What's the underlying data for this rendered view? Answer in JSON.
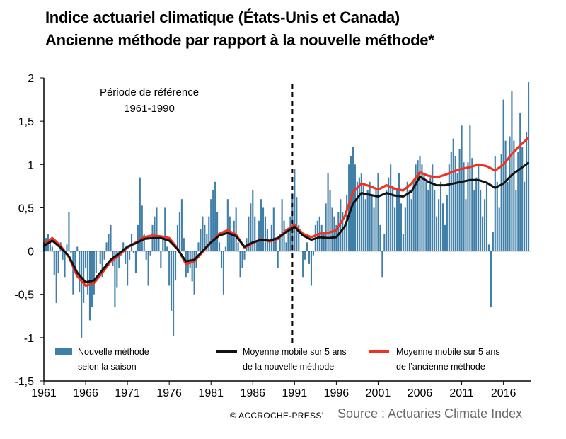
{
  "title_line1": "Indice actuariel climatique (États-Unis et Canada)",
  "title_line2": "Ancienne méthode par rapport à la nouvelle méthode*",
  "copyright": "© ACCROCHE-PRESS’",
  "source": "Source : Actuaries Climate Index",
  "chart_data": {
    "type": "bar+line",
    "ylim": [
      -1.5,
      2
    ],
    "yticks": [
      -1.5,
      -1,
      -0.5,
      0,
      0.5,
      1,
      1.5,
      2
    ],
    "ytick_labels": [
      "-1,5",
      "-1",
      "-0,5",
      "0",
      "0,5",
      "1",
      "1,5",
      "2"
    ],
    "xticks": [
      "1961",
      "1966",
      "1971",
      "1976",
      "1981",
      "1986",
      "1991",
      "1996",
      "2001",
      "2006",
      "2011",
      "2016"
    ],
    "x_range": [
      1961.0,
      2019.25
    ],
    "reference_period_label_line1": "Période de référence",
    "reference_period_label_line2": "1961-1990",
    "reference_divider_x": 1990.75,
    "colors": {
      "bars": "#3f7fa8",
      "new_ma": "#111111",
      "old_ma": "#ee3322"
    },
    "legend": [
      {
        "key": "bars",
        "line1": "Nouvelle méthode",
        "line2": "selon la saison"
      },
      {
        "key": "new_ma",
        "line1": "Moyenne mobile sur 5 ans",
        "line2": "de la nouvelle méthode"
      },
      {
        "key": "old_ma",
        "line1": "Moyenne mobile sur 5 ans",
        "line2": "de l’ancienne méthode"
      }
    ],
    "bar_anchors": [
      [
        1961.0,
        0.1
      ],
      [
        1961.5,
        0.2
      ],
      [
        1962.0,
        0.05
      ],
      [
        1962.5,
        -0.6
      ],
      [
        1963.0,
        0.1
      ],
      [
        1963.5,
        -0.3
      ],
      [
        1964.0,
        0.45
      ],
      [
        1964.5,
        -0.5
      ],
      [
        1965.0,
        0.05
      ],
      [
        1965.5,
        -1.0
      ],
      [
        1966.0,
        -0.2
      ],
      [
        1966.5,
        -0.8
      ],
      [
        1967.0,
        -0.5
      ],
      [
        1967.5,
        0.0
      ],
      [
        1968.0,
        -0.3
      ],
      [
        1968.5,
        0.1
      ],
      [
        1969.0,
        0.3
      ],
      [
        1969.5,
        -0.65
      ],
      [
        1970.0,
        -0.2
      ],
      [
        1970.5,
        0.1
      ],
      [
        1971.0,
        -0.4
      ],
      [
        1971.5,
        0.2
      ],
      [
        1972.0,
        -0.25
      ],
      [
        1972.5,
        0.85
      ],
      [
        1973.0,
        0.2
      ],
      [
        1973.5,
        -0.4
      ],
      [
        1974.0,
        0.3
      ],
      [
        1974.5,
        0.5
      ],
      [
        1975.0,
        -0.2
      ],
      [
        1975.5,
        0.5
      ],
      [
        1976.0,
        -0.4
      ],
      [
        1976.5,
        -0.98
      ],
      [
        1977.0,
        0.3
      ],
      [
        1977.5,
        0.6
      ],
      [
        1978.0,
        -0.3
      ],
      [
        1978.5,
        -0.2
      ],
      [
        1979.0,
        -0.5
      ],
      [
        1979.5,
        0.1
      ],
      [
        1980.0,
        0.4
      ],
      [
        1980.5,
        0.2
      ],
      [
        1981.0,
        0.6
      ],
      [
        1981.5,
        0.8
      ],
      [
        1982.0,
        0.1
      ],
      [
        1982.5,
        -0.5
      ],
      [
        1983.0,
        0.6
      ],
      [
        1983.5,
        0.2
      ],
      [
        1984.0,
        0.5
      ],
      [
        1984.5,
        -0.3
      ],
      [
        1985.0,
        -0.1
      ],
      [
        1985.5,
        0.4
      ],
      [
        1986.0,
        0.7
      ],
      [
        1986.5,
        0.1
      ],
      [
        1987.0,
        0.6
      ],
      [
        1987.5,
        0.4
      ],
      [
        1988.0,
        0.1
      ],
      [
        1988.5,
        0.5
      ],
      [
        1989.0,
        -0.2
      ],
      [
        1989.5,
        0.6
      ],
      [
        1990.0,
        0.1
      ],
      [
        1990.5,
        0.4
      ],
      [
        1991.0,
        0.95
      ],
      [
        1991.5,
        0.3
      ],
      [
        1992.0,
        -0.3
      ],
      [
        1992.5,
        0.1
      ],
      [
        1993.0,
        -0.4
      ],
      [
        1993.5,
        0.3
      ],
      [
        1994.0,
        0.4
      ],
      [
        1994.5,
        0.2
      ],
      [
        1995.0,
        0.9
      ],
      [
        1995.5,
        0.5
      ],
      [
        1996.0,
        0.3
      ],
      [
        1996.5,
        0.6
      ],
      [
        1997.0,
        0.3
      ],
      [
        1997.5,
        1.0
      ],
      [
        1998.0,
        1.2
      ],
      [
        1998.5,
        0.8
      ],
      [
        1999.0,
        0.9
      ],
      [
        1999.5,
        0.6
      ],
      [
        2000.0,
        0.8
      ],
      [
        2000.5,
        0.5
      ],
      [
        2001.0,
        0.9
      ],
      [
        2001.5,
        -0.3
      ],
      [
        2002.0,
        0.7
      ],
      [
        2002.5,
        1.0
      ],
      [
        2003.0,
        0.5
      ],
      [
        2003.5,
        0.9
      ],
      [
        2004.0,
        0.2
      ],
      [
        2004.5,
        0.8
      ],
      [
        2005.0,
        0.6
      ],
      [
        2005.5,
        1.0
      ],
      [
        2006.0,
        1.1
      ],
      [
        2006.5,
        0.9
      ],
      [
        2007.0,
        0.7
      ],
      [
        2007.5,
        1.0
      ],
      [
        2008.0,
        0.4
      ],
      [
        2008.5,
        0.8
      ],
      [
        2009.0,
        0.3
      ],
      [
        2009.5,
        1.0
      ],
      [
        2010.0,
        1.3
      ],
      [
        2010.5,
        0.9
      ],
      [
        2011.0,
        1.45
      ],
      [
        2011.5,
        0.6
      ],
      [
        2012.0,
        1.45
      ],
      [
        2012.5,
        0.7
      ],
      [
        2013.0,
        1.0
      ],
      [
        2013.5,
        0.4
      ],
      [
        2014.0,
        0.8
      ],
      [
        2014.5,
        -0.65
      ],
      [
        2015.0,
        1.1
      ],
      [
        2015.5,
        0.5
      ],
      [
        2016.0,
        1.75
      ],
      [
        2016.5,
        0.8
      ],
      [
        2017.0,
        1.85
      ],
      [
        2017.5,
        0.7
      ],
      [
        2018.0,
        1.6
      ],
      [
        2018.5,
        0.8
      ],
      [
        2019.0,
        1.95
      ]
    ],
    "series": [
      {
        "key": "new_ma",
        "values": [
          [
            1961.0,
            0.06
          ],
          [
            1962.0,
            0.12
          ],
          [
            1963.0,
            0.04
          ],
          [
            1964.0,
            -0.06
          ],
          [
            1965.0,
            -0.25
          ],
          [
            1966.0,
            -0.36
          ],
          [
            1967.0,
            -0.34
          ],
          [
            1968.0,
            -0.22
          ],
          [
            1969.0,
            -0.1
          ],
          [
            1970.0,
            -0.03
          ],
          [
            1971.0,
            0.05
          ],
          [
            1972.0,
            0.09
          ],
          [
            1973.0,
            0.14
          ],
          [
            1974.0,
            0.15
          ],
          [
            1975.0,
            0.15
          ],
          [
            1976.0,
            0.12
          ],
          [
            1977.0,
            0.02
          ],
          [
            1978.0,
            -0.12
          ],
          [
            1979.0,
            -0.1
          ],
          [
            1980.0,
            0.0
          ],
          [
            1981.0,
            0.1
          ],
          [
            1982.0,
            0.18
          ],
          [
            1983.0,
            0.21
          ],
          [
            1984.0,
            0.17
          ],
          [
            1985.0,
            0.05
          ],
          [
            1986.0,
            0.1
          ],
          [
            1987.0,
            0.13
          ],
          [
            1988.0,
            0.12
          ],
          [
            1989.0,
            0.15
          ],
          [
            1990.0,
            0.22
          ],
          [
            1991.0,
            0.28
          ],
          [
            1992.0,
            0.18
          ],
          [
            1993.0,
            0.13
          ],
          [
            1994.0,
            0.16
          ],
          [
            1995.0,
            0.15
          ],
          [
            1996.0,
            0.16
          ],
          [
            1997.0,
            0.28
          ],
          [
            1998.0,
            0.55
          ],
          [
            1999.0,
            0.67
          ],
          [
            2000.0,
            0.65
          ],
          [
            2001.0,
            0.63
          ],
          [
            2002.0,
            0.67
          ],
          [
            2003.0,
            0.64
          ],
          [
            2004.0,
            0.63
          ],
          [
            2005.0,
            0.69
          ],
          [
            2006.0,
            0.86
          ],
          [
            2007.0,
            0.8
          ],
          [
            2008.0,
            0.76
          ],
          [
            2009.0,
            0.76
          ],
          [
            2010.0,
            0.78
          ],
          [
            2011.0,
            0.8
          ],
          [
            2012.0,
            0.82
          ],
          [
            2013.0,
            0.82
          ],
          [
            2014.0,
            0.79
          ],
          [
            2015.0,
            0.73
          ],
          [
            2016.0,
            0.78
          ],
          [
            2017.0,
            0.88
          ],
          [
            2018.0,
            0.95
          ],
          [
            2019.0,
            1.02
          ]
        ]
      },
      {
        "key": "old_ma",
        "values": [
          [
            1961.0,
            0.07
          ],
          [
            1962.0,
            0.15
          ],
          [
            1963.0,
            0.06
          ],
          [
            1964.0,
            -0.07
          ],
          [
            1965.0,
            -0.29
          ],
          [
            1966.0,
            -0.4
          ],
          [
            1967.0,
            -0.37
          ],
          [
            1968.0,
            -0.25
          ],
          [
            1969.0,
            -0.12
          ],
          [
            1970.0,
            -0.05
          ],
          [
            1971.0,
            0.04
          ],
          [
            1972.0,
            0.1
          ],
          [
            1973.0,
            0.16
          ],
          [
            1974.0,
            0.18
          ],
          [
            1975.0,
            0.17
          ],
          [
            1976.0,
            0.15
          ],
          [
            1977.0,
            0.03
          ],
          [
            1978.0,
            -0.15
          ],
          [
            1979.0,
            -0.12
          ],
          [
            1980.0,
            -0.01
          ],
          [
            1981.0,
            0.1
          ],
          [
            1982.0,
            0.2
          ],
          [
            1983.0,
            0.24
          ],
          [
            1984.0,
            0.19
          ],
          [
            1985.0,
            0.04
          ],
          [
            1986.0,
            0.09
          ],
          [
            1987.0,
            0.14
          ],
          [
            1988.0,
            0.11
          ],
          [
            1989.0,
            0.14
          ],
          [
            1990.0,
            0.24
          ],
          [
            1991.0,
            0.3
          ],
          [
            1992.0,
            0.2
          ],
          [
            1993.0,
            0.16
          ],
          [
            1994.0,
            0.2
          ],
          [
            1995.0,
            0.21
          ],
          [
            1996.0,
            0.24
          ],
          [
            1997.0,
            0.4
          ],
          [
            1998.0,
            0.68
          ],
          [
            1999.0,
            0.78
          ],
          [
            2000.0,
            0.75
          ],
          [
            2001.0,
            0.71
          ],
          [
            2002.0,
            0.76
          ],
          [
            2003.0,
            0.72
          ],
          [
            2004.0,
            0.7
          ],
          [
            2005.0,
            0.78
          ],
          [
            2006.0,
            0.91
          ],
          [
            2007.0,
            0.87
          ],
          [
            2008.0,
            0.85
          ],
          [
            2009.0,
            0.88
          ],
          [
            2010.0,
            0.92
          ],
          [
            2011.0,
            0.95
          ],
          [
            2012.0,
            0.97
          ],
          [
            2013.0,
            1.0
          ],
          [
            2014.0,
            0.98
          ],
          [
            2015.0,
            0.93
          ],
          [
            2016.0,
            1.0
          ],
          [
            2017.0,
            1.12
          ],
          [
            2018.0,
            1.22
          ],
          [
            2019.0,
            1.31
          ]
        ]
      }
    ]
  }
}
